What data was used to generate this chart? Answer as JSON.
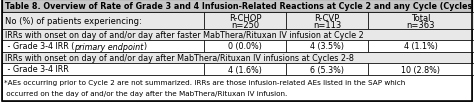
{
  "title": "Table 8. Overview of Rate of Grade 3 and 4 Infusion-Related Reactions at Cycle 2 and any Cycle (Cycles 2 to 8)*.",
  "header_col0": "No (%) of patients experiencing:",
  "header_col1_line1": "R-CHOP",
  "header_col1_line2": "n=250",
  "header_col2_line1": "R-CVP",
  "header_col2_line2": "n=113",
  "header_col3_line1": "Total",
  "header_col3_line2": "n=363",
  "section1": "IRRs with onset on day of and/or day after faster MabThera/Rituxan IV infusion at Cycle 2",
  "row1_label_pre": " - Grade 3-4 IRR (",
  "row1_label_italic": "primary endpoint",
  "row1_label_post": ")",
  "row1_col1": "0 (0.0%)",
  "row1_col2": "4 (3.5%)",
  "row1_col3": "4 (1.1%)",
  "section2": "IRRs with onset on day of and/or day after MabThera/Rituxan IV infusions at Cycles 2-8",
  "row2_label": " - Grade 3-4 IRR",
  "row2_col1": "4 (1.6%)",
  "row2_col2": "6 (5.3%)",
  "row2_col3": "10 (2.8%)",
  "footnote_line1": "*AEs occurring prior to Cycle 2 are not summarized. IRRs are those infusion-related AEs listed in the SAP which",
  "footnote_line2": " occurred on the day of and/or the day after the MabThera/Rituxan IV infusion.",
  "bg_color": "#ffffff",
  "title_bg": "#c8c8c8",
  "header_bg": "#e8e8e8",
  "section_bg": "#e8e8e8",
  "row_bg": "#ffffff",
  "foot_bg": "#ffffff",
  "border_color": "#000000",
  "title_fontsize": 5.8,
  "header_fontsize": 6.0,
  "cell_fontsize": 5.8,
  "footnote_fontsize": 5.2
}
